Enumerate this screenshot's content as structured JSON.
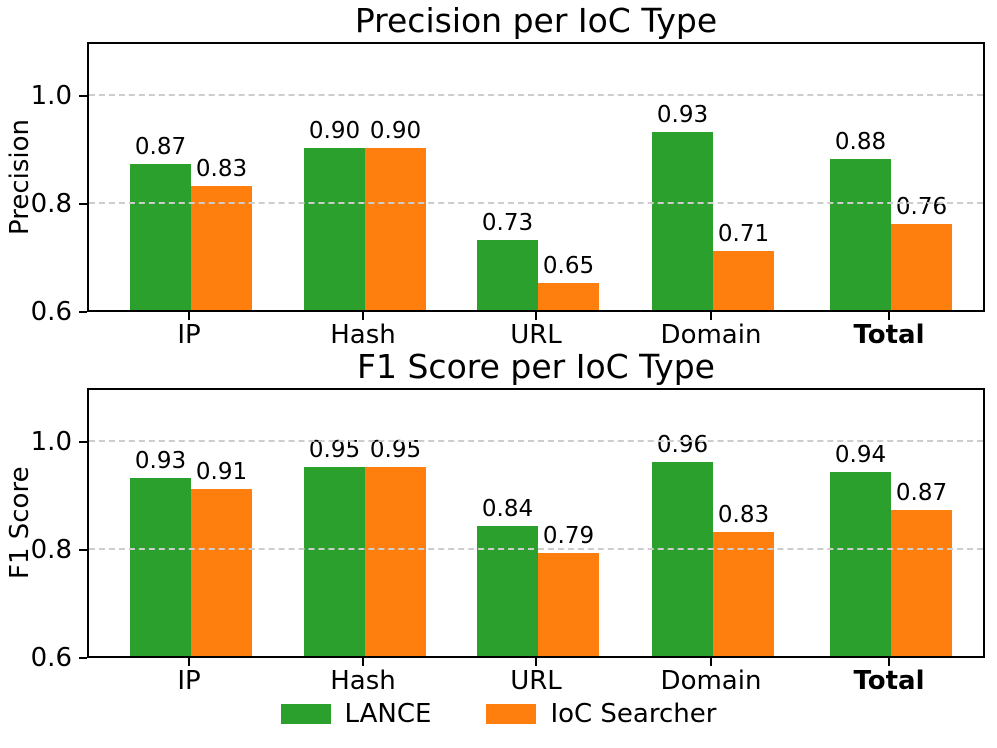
{
  "figure": {
    "background": "#ffffff",
    "grid_color": "#cdcdcd",
    "series_colors": {
      "LANCE": "#2ca02c",
      "IoC Searcher": "#ff7f0e"
    }
  },
  "legend": {
    "position": "bottom-center",
    "items": [
      {
        "label": "LANCE",
        "color": "#2ca02c"
      },
      {
        "label": "IoC Searcher",
        "color": "#ff7f0e"
      }
    ]
  },
  "chart_data": [
    {
      "type": "bar",
      "title": "Precision per IoC Type",
      "ylabel": "Precision",
      "xlabel": "",
      "categories": [
        "IP",
        "Hash",
        "URL",
        "Domain",
        "Total"
      ],
      "bold_categories": [
        "Total"
      ],
      "series": [
        {
          "name": "LANCE",
          "color": "#2ca02c",
          "values": [
            0.87,
            0.9,
            0.73,
            0.93,
            0.88
          ]
        },
        {
          "name": "IoC Searcher",
          "color": "#ff7f0e",
          "values": [
            0.83,
            0.9,
            0.65,
            0.71,
            0.76
          ]
        }
      ],
      "ylim": [
        0.6,
        1.1
      ],
      "yticks": [
        0.6,
        0.8,
        1.0
      ],
      "gridlines": [
        0.8,
        1.0
      ],
      "grid_style": "dashed",
      "bar_value_labels": true
    },
    {
      "type": "bar",
      "title": "F1 Score per IoC Type",
      "ylabel": "F1 Score",
      "xlabel": "",
      "categories": [
        "IP",
        "Hash",
        "URL",
        "Domain",
        "Total"
      ],
      "bold_categories": [
        "Total"
      ],
      "series": [
        {
          "name": "LANCE",
          "color": "#2ca02c",
          "values": [
            0.93,
            0.95,
            0.84,
            0.96,
            0.94
          ]
        },
        {
          "name": "IoC Searcher",
          "color": "#ff7f0e",
          "values": [
            0.91,
            0.95,
            0.79,
            0.83,
            0.87
          ]
        }
      ],
      "ylim": [
        0.6,
        1.1
      ],
      "yticks": [
        0.6,
        0.8,
        1.0
      ],
      "gridlines": [
        0.8,
        1.0
      ],
      "grid_style": "dashed",
      "bar_value_labels": true
    }
  ]
}
